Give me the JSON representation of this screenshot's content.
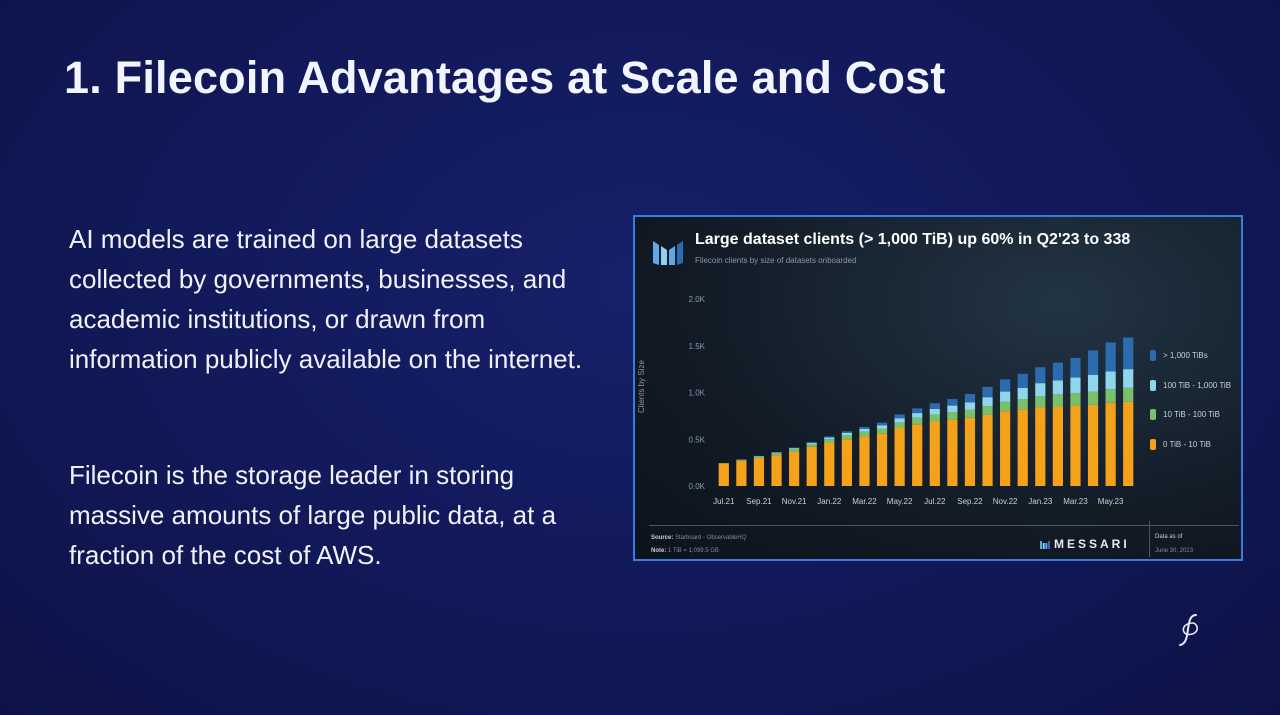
{
  "slide": {
    "title": "1. Filecoin Advantages at Scale and Cost",
    "paragraphs": [
      "AI models are trained on large datasets collected by governments, businesses, and academic institutions, or drawn from information publicly available on the internet.",
      "Filecoin is the storage leader in storing massive amounts of large public data, at a fraction of the cost of AWS."
    ],
    "corner_logo_icon": "filecoin-script-logo-icon"
  },
  "panel": {
    "logo_icon": "messari-m-icon",
    "brand": "MESSARI",
    "source_label": "Source:",
    "source_value": "Starboard - ObservableHQ",
    "note_label": "Note:",
    "note_value": "1 TiB = 1,099.5 GB",
    "data_as_of_label": "Data as of",
    "data_as_of_date": "June 30, 2023"
  },
  "chart_data": {
    "type": "bar",
    "stacked": true,
    "title": "Large dataset clients (> 1,000 TiB) up 60% in Q2'23 to 338",
    "subtitle": "Filecoin clients by size of datasets onboarded",
    "ylabel": "Clients by Size",
    "xlabel": "",
    "ylim": [
      0,
      2000
    ],
    "yticks": [
      0,
      500,
      1000,
      1500,
      2000
    ],
    "ytick_labels": [
      "0.0K",
      "0.5K",
      "1.0K",
      "1.5K",
      "2.0K"
    ],
    "grid": false,
    "legend": "right",
    "categories": [
      "Jul.21",
      "Aug.21",
      "Sep.21",
      "Oct.21",
      "Nov.21",
      "Dec.21",
      "Jan.22",
      "Feb.22",
      "Mar.22",
      "Apr.22",
      "May.22",
      "Jun.22",
      "Jul.22",
      "Aug.22",
      "Sep.22",
      "Oct.22",
      "Nov.22",
      "Dec.22",
      "Jan.23",
      "Feb.23",
      "Mar.23",
      "Apr.23",
      "May.23",
      "Jun.23"
    ],
    "xtick_labels": [
      "Jul.21",
      "Sep.21",
      "Nov.21",
      "Jan.22",
      "Mar.22",
      "May.22",
      "Jul.22",
      "Sep.22",
      "Nov.22",
      "Jan.23",
      "Mar.23",
      "May.23"
    ],
    "series": [
      {
        "name": "0 TiB - 10 TiB",
        "color": "#f5a21b",
        "values": [
          240,
          270,
          300,
          330,
          370,
          420,
          460,
          500,
          530,
          560,
          620,
          660,
          690,
          710,
          730,
          760,
          800,
          820,
          840,
          850,
          860,
          870,
          890,
          900
        ]
      },
      {
        "name": "10 TiB - 100 TiB",
        "color": "#7ac06a",
        "values": [
          5,
          10,
          15,
          20,
          25,
          30,
          40,
          45,
          50,
          55,
          60,
          70,
          75,
          80,
          85,
          95,
          100,
          110,
          120,
          130,
          135,
          140,
          145,
          150
        ]
      },
      {
        "name": "100 TiB - 1,000 TiB",
        "color": "#8fd6ec",
        "values": [
          0,
          3,
          5,
          8,
          10,
          12,
          18,
          22,
          30,
          35,
          45,
          50,
          60,
          70,
          80,
          95,
          110,
          120,
          140,
          150,
          165,
          180,
          190,
          200
        ]
      },
      {
        "name": "> 1,000 TiBs",
        "color": "#2c6bb0",
        "values": [
          0,
          0,
          2,
          4,
          6,
          8,
          12,
          18,
          22,
          28,
          40,
          50,
          60,
          70,
          90,
          110,
          130,
          150,
          170,
          190,
          210,
          260,
          310,
          338
        ]
      }
    ]
  }
}
